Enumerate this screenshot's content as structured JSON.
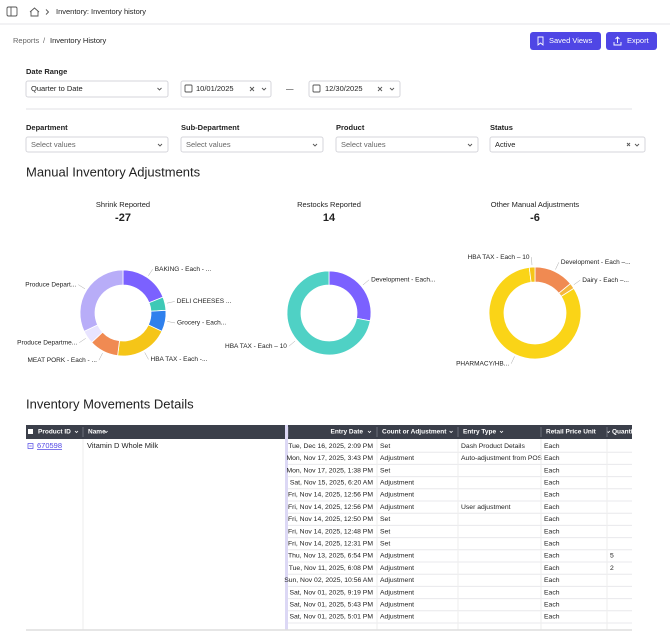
{
  "nav": {
    "title": "Inventory: Inventory history"
  },
  "breadcrumb": {
    "items": [
      "Reports",
      "Inventory History"
    ],
    "separator": "/"
  },
  "buttons": [
    "Saved Views",
    "Export"
  ],
  "date_range": {
    "label": "Date Range",
    "value": "Quarter to Date",
    "start": "10/01/2025",
    "end": "12/30/2025",
    "separator": "—"
  },
  "filters": [
    {
      "label": "Department",
      "value": "Select values"
    },
    {
      "label": "Sub-Department",
      "value": "Select values"
    },
    {
      "label": "Product",
      "value": "Select values"
    },
    {
      "label": "Status",
      "value": "Active"
    }
  ],
  "section_titles": [
    "Manual Inventory Adjustments",
    "Inventory Movements Details"
  ],
  "chart_data": [
    {
      "type": "pie",
      "title": "Shrink Reported",
      "total": -27,
      "categories": [
        "BAKING - Each - ...",
        "DELI CHEESES ...",
        "Grocery - Each...",
        "HBA TAX - Each -...",
        "MEAT PORK - Each - ...",
        "Produce Departme...",
        "Produce Depart..."
      ],
      "values": [
        19,
        5,
        8,
        20,
        11,
        5,
        32
      ],
      "colors": [
        "#7b61ff",
        "#3ec9b6",
        "#2f80ed",
        "#f5c518",
        "#f08a52",
        "#e8e4ff",
        "#b8adf8"
      ]
    },
    {
      "type": "pie",
      "title": "Restocks Reported",
      "total": 14,
      "categories": [
        "Development - Each...",
        "HBA TAX - Each – 10"
      ],
      "values": [
        28,
        72
      ],
      "colors": [
        "#7b61ff",
        "#4fd1c5"
      ]
    },
    {
      "type": "pie",
      "title": "Other Manual Adjustments",
      "total": -6,
      "categories": [
        "Development - Each –...",
        "Dairy - Each –...",
        "PHARMACY/HB...",
        "HBA TAX - Each – 10"
      ],
      "values": [
        14,
        2,
        82,
        2
      ],
      "colors": [
        "#f08a52",
        "#f5b73b",
        "#fad417",
        "#f5c518"
      ]
    }
  ],
  "table": {
    "columns": [
      "Product ID",
      "Name",
      "Entry Date",
      "Count or Adjustment",
      "Entry Type",
      "Retail Price Unit",
      "Quantity"
    ],
    "group": {
      "product_id": "670598",
      "name": "Vitamin D Whole Milk"
    },
    "rows": [
      [
        "Tue, Dec 16, 2025, 2:09 PM",
        "Set",
        "Dash Product Details",
        "Each",
        null
      ],
      [
        "Mon, Nov 17, 2025, 3:43 PM",
        "Adjustment",
        "Auto-adjustment from POS",
        "Each",
        null
      ],
      [
        "Mon, Nov 17, 2025, 1:38 PM",
        "Set",
        null,
        "Each",
        null
      ],
      [
        "Sat, Nov 15, 2025, 6:20 AM",
        "Adjustment",
        null,
        "Each",
        null
      ],
      [
        "Fri, Nov 14, 2025, 12:56 PM",
        "Adjustment",
        null,
        "Each",
        null
      ],
      [
        "Fri, Nov 14, 2025, 12:56 PM",
        "Adjustment",
        "User adjustment",
        "Each",
        null
      ],
      [
        "Fri, Nov 14, 2025, 12:50 PM",
        "Set",
        null,
        "Each",
        null
      ],
      [
        "Fri, Nov 14, 2025, 12:48 PM",
        "Set",
        null,
        "Each",
        null
      ],
      [
        "Fri, Nov 14, 2025, 12:31 PM",
        "Set",
        null,
        "Each",
        null
      ],
      [
        "Thu, Nov 13, 2025, 6:54 PM",
        "Adjustment",
        null,
        "Each",
        "5"
      ],
      [
        "Tue, Nov 11, 2025, 6:08 PM",
        "Adjustment",
        null,
        "Each",
        "2"
      ],
      [
        "Sun, Nov 02, 2025, 10:56 AM",
        "Adjustment",
        null,
        "Each",
        null
      ],
      [
        "Sat, Nov 01, 2025, 9:19 PM",
        "Adjustment",
        null,
        "Each",
        null
      ],
      [
        "Sat, Nov 01, 2025, 5:43 PM",
        "Adjustment",
        null,
        "Each",
        null
      ],
      [
        "Sat, Nov 01, 2025, 5:01 PM",
        "Adjustment",
        null,
        "Each",
        null
      ]
    ]
  }
}
